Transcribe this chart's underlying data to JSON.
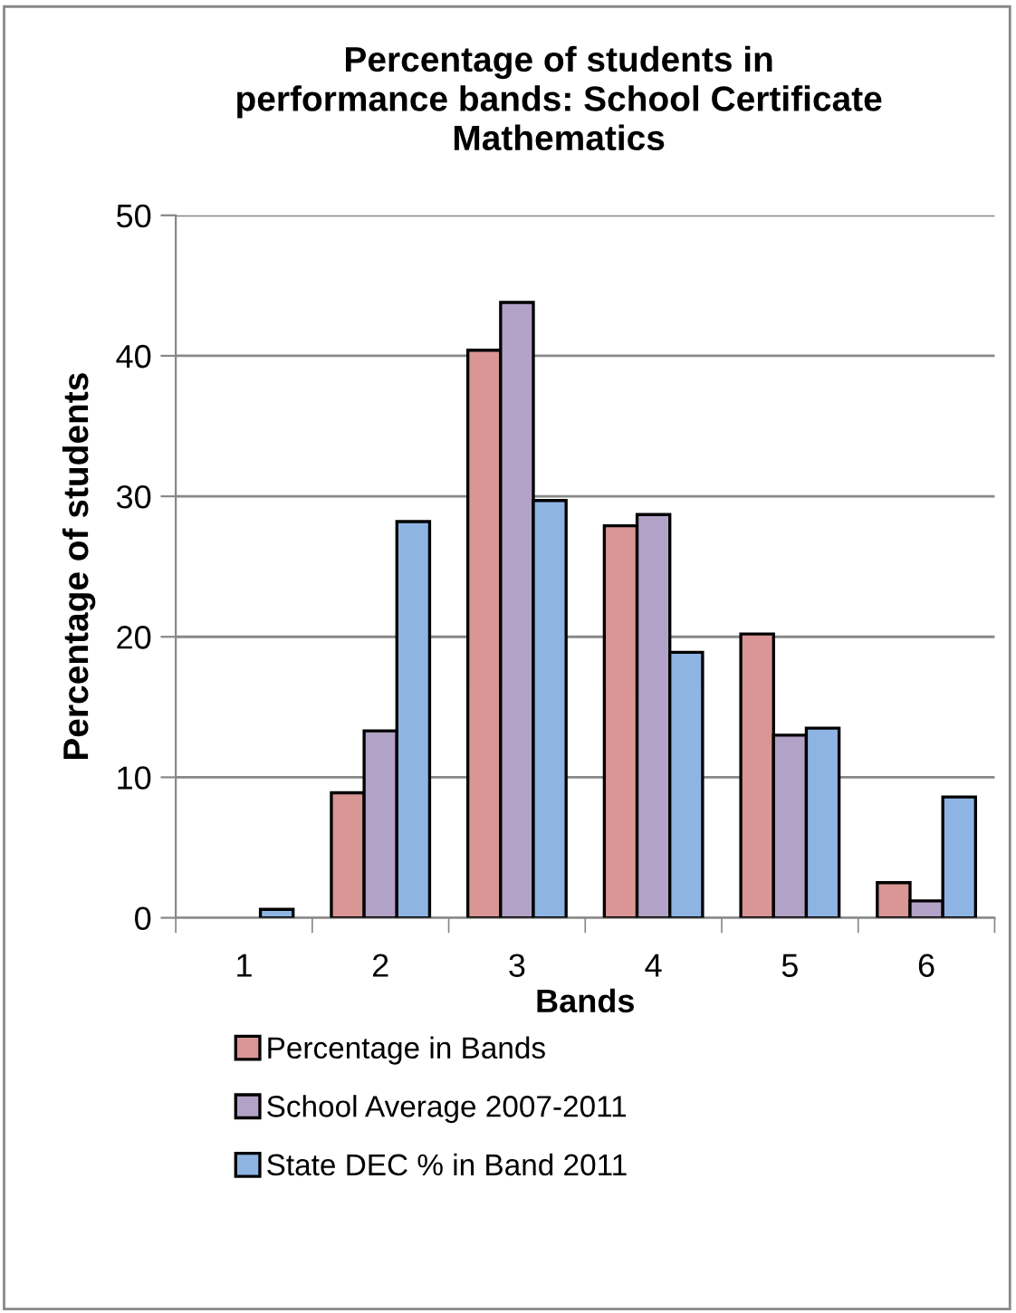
{
  "chart_data": {
    "type": "bar",
    "title": "Percentage of students in\nperformance bands: School Certificate\nMathematics",
    "xlabel": "Bands",
    "ylabel": "Percentage of students",
    "categories": [
      "1",
      "2",
      "3",
      "4",
      "5",
      "6"
    ],
    "series": [
      {
        "name": "Percentage in Bands",
        "color": "#d99694",
        "values": [
          null,
          8.9,
          40.4,
          27.9,
          20.2,
          2.5
        ]
      },
      {
        "name": "School Average 2007-2011",
        "color": "#b3a2c7",
        "values": [
          null,
          13.3,
          43.8,
          28.7,
          13.0,
          1.2
        ]
      },
      {
        "name": "State DEC % in Band 2011",
        "color": "#8eb4e3",
        "values": [
          0.6,
          28.2,
          29.7,
          18.9,
          13.5,
          8.6
        ]
      }
    ],
    "ylim": [
      0,
      50
    ],
    "yticks": [
      0,
      10,
      20,
      30,
      40,
      50
    ],
    "grid": "y",
    "legend": "bottom"
  }
}
